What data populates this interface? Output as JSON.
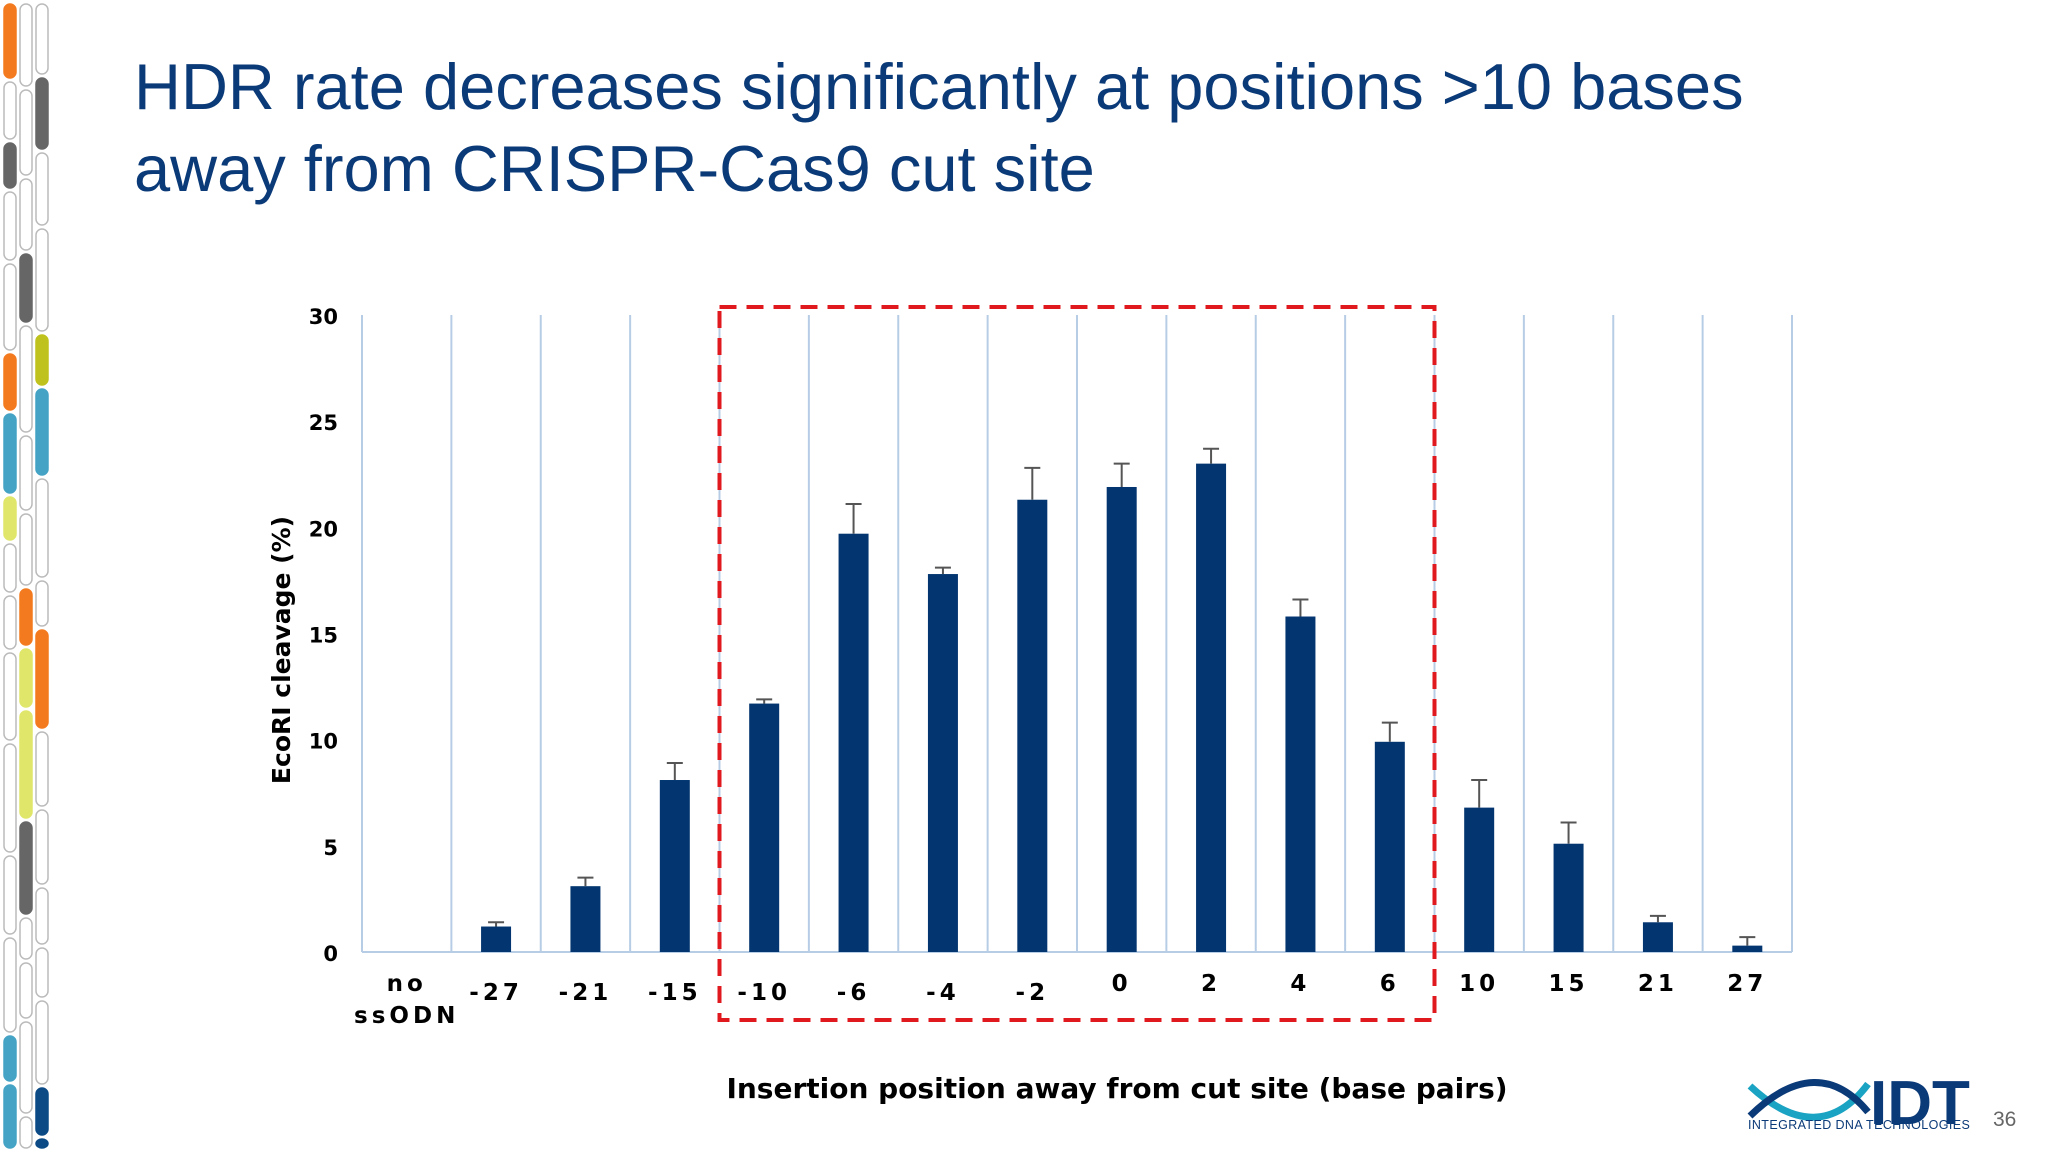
{
  "slide": {
    "title_lines": [
      "HDR rate decreases significantly at positions >10 bases",
      "away from CRISPR-Cas9 cut site"
    ],
    "page_number": "36",
    "logo": {
      "text": "IDT",
      "tagline": "INTEGRATED DNA TECHNOLOGIES"
    }
  },
  "colors": {
    "bar": "#033670",
    "grid": "#b7cde5",
    "highlight_box": "#e0191f",
    "error_bar": "#555555",
    "title": "#0b3a78"
  },
  "sidebar_strip": {
    "palette": [
      "#f47a1f",
      "#45a3c5",
      "#0b4a85",
      "#666666",
      "#bfc21c",
      "#dfe66a"
    ]
  },
  "chart_data": {
    "type": "bar",
    "xlabel": "Insertion position away from cut site (base pairs)",
    "ylabel": "EcoRI cleavage (%)",
    "ylim": [
      0,
      30
    ],
    "yticks": [
      0,
      5,
      10,
      15,
      20,
      25,
      30
    ],
    "grid": "vertical",
    "categories": [
      "no ssODN",
      "-27",
      "-21",
      "-15",
      "-10",
      "-6",
      "-4",
      "-2",
      "0",
      "2",
      "4",
      "6",
      "10",
      "15",
      "21",
      "27"
    ],
    "values": [
      0,
      1.2,
      3.1,
      8.1,
      11.7,
      19.7,
      17.8,
      21.3,
      21.9,
      23.0,
      15.8,
      9.9,
      6.8,
      5.1,
      1.4,
      0.3
    ],
    "error_upper": [
      0,
      0.2,
      0.4,
      0.8,
      0.2,
      1.4,
      0.3,
      1.5,
      1.1,
      0.7,
      0.8,
      0.9,
      1.3,
      1.0,
      0.3,
      0.4
    ],
    "highlight": {
      "from": "-10",
      "to": "6",
      "style": "dashed red box"
    }
  }
}
